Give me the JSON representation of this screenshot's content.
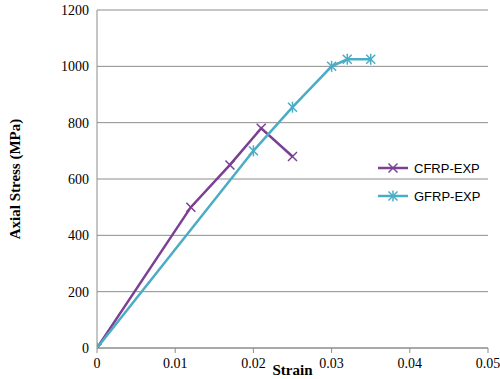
{
  "chart_data": {
    "type": "line",
    "x_label": "Strain",
    "y_label": "Axial Stress (MPa)",
    "xlim": [
      0,
      0.05
    ],
    "xticks": [
      0,
      0.01,
      0.02,
      0.03,
      0.04,
      0.05
    ],
    "ylim": [
      0,
      1200
    ],
    "yticks": [
      0,
      200,
      400,
      600,
      800,
      1000,
      1200
    ],
    "grid": true,
    "legend": "right",
    "series": [
      {
        "name": "CFRP-EXP",
        "color": "#7b3f94",
        "marker": "x",
        "line_style": "solid",
        "x": [
          0,
          0.012,
          0.017,
          0.021,
          0.025
        ],
        "values": [
          0,
          500,
          650,
          780,
          680
        ]
      },
      {
        "name": "GFRP-EXP",
        "color": "#4bacc6",
        "marker": "asterisk",
        "line_style": "solid",
        "x": [
          0,
          0.02,
          0.025,
          0.03,
          0.032,
          0.035
        ],
        "values": [
          0,
          700,
          855,
          1000,
          1025,
          1025
        ]
      }
    ]
  }
}
